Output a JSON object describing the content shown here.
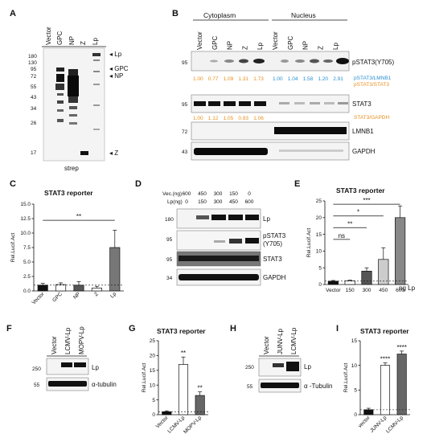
{
  "panels": {
    "A": {
      "letter": "A",
      "lanes": [
        "Vector",
        "GPC",
        "NP",
        "Z",
        "Lp"
      ],
      "markers": [
        "180",
        "130",
        "95",
        "72",
        "55",
        "43",
        "34",
        "26",
        "17"
      ],
      "arrows": [
        "Lp",
        "GPC",
        "NP",
        "Z"
      ],
      "footer": "strep"
    },
    "B": {
      "letter": "B",
      "group_cyto": "Cytoplasm",
      "group_nuc": "Nucleus",
      "lanes": [
        "Vector",
        "GPC",
        "NP",
        "Z",
        "Lp",
        "Vector",
        "GPC",
        "NP",
        "Z",
        "Lp"
      ],
      "blots": [
        {
          "marker": "95",
          "label": "pSTAT3(Y705)"
        },
        {
          "marker": "95",
          "label": "STAT3"
        },
        {
          "marker": "72",
          "label": "LMNB1"
        },
        {
          "marker": "43",
          "label": "GAPDH"
        }
      ],
      "ratios_cyto_top": [
        "1.00",
        "0.77",
        "1.09",
        "1.31",
        "1.73"
      ],
      "ratios_nuc_top": [
        "1.00",
        "1.04",
        "1.58",
        "1.20",
        "2.91"
      ],
      "ratio_label_1": "pSTAT3/LMNB1",
      "ratio_label_2": "pSTAT3/STAT3",
      "ratios_cyto_bottom": [
        "1.00",
        "1.12",
        "1.05",
        "0.93",
        "1.06"
      ],
      "ratio_label_3": "STAT3/GAPDH",
      "color_blue": "#2a8fd0",
      "color_orange": "#e8901e"
    },
    "C": {
      "letter": "C",
      "title": "STAT3 reporter",
      "sig": "**"
    },
    "D": {
      "letter": "D",
      "row_vec_label": "Vec.(ng)",
      "row_vec": [
        "600",
        "450",
        "300",
        "150",
        "0"
      ],
      "row_lp_label": "Lp(ng)",
      "row_lp": [
        "0",
        "150",
        "300",
        "450",
        "600"
      ],
      "blots": [
        {
          "marker": "180",
          "label": "Lp"
        },
        {
          "marker": "95",
          "label": "pSTAT3"
        },
        {
          "marker": "95",
          "label": "STAT3"
        },
        {
          "marker": "34",
          "label": "GAPDH"
        }
      ],
      "pstat_sub": "(Y705)"
    },
    "E": {
      "letter": "E",
      "title": "STAT3 reporter",
      "sigs": [
        "***",
        "*",
        "**",
        "ns"
      ],
      "xunit": "ng Lp"
    },
    "F": {
      "letter": "F",
      "lanes": [
        "Vector",
        "LCMV-Lp",
        "MOPV-Lp"
      ],
      "blots": [
        {
          "marker": "250",
          "label": "Lp"
        },
        {
          "marker": "55",
          "label": "α-tubulin"
        }
      ]
    },
    "G": {
      "letter": "G",
      "title": "STAT3 reporter",
      "sigs": [
        "**",
        "**"
      ]
    },
    "H": {
      "letter": "H",
      "lanes": [
        "Vector",
        "JUNV-Lp",
        "LCMV-Lp"
      ],
      "blots": [
        {
          "marker": "250",
          "label": "Lp"
        },
        {
          "marker": "55",
          "label": "α -Tubulin"
        }
      ]
    },
    "I": {
      "letter": "I",
      "title": "STAT3 reporter",
      "sigs": [
        "****",
        "****"
      ]
    }
  },
  "chart_data": [
    {
      "panel": "C",
      "type": "bar",
      "categories": [
        "Vector",
        "GPC",
        "NP",
        "Z",
        "Lp"
      ],
      "values": [
        1.0,
        1.1,
        1.0,
        0.5,
        7.5
      ],
      "errors": [
        0.3,
        0.3,
        0.6,
        0.3,
        3.0
      ],
      "fills": [
        "#111111",
        "#ffffff",
        "#555555",
        "#ffffff",
        "#777777"
      ],
      "ylabel": "Rel.Lucif.Act",
      "yticks": [
        0,
        2.5,
        5.0,
        7.5,
        10.0,
        12.5,
        15.0
      ],
      "ylim": [
        0,
        15
      ],
      "reference_line": 1
    },
    {
      "panel": "E",
      "type": "bar",
      "categories": [
        "Vector",
        "150",
        "300",
        "450",
        "600"
      ],
      "values": [
        1.0,
        1.1,
        4.0,
        7.5,
        20.0
      ],
      "errors": [
        0.2,
        0.2,
        1.0,
        3.5,
        3.5
      ],
      "fills": [
        "#111111",
        "#ffffff",
        "#555555",
        "#cccccc",
        "#888888"
      ],
      "ylabel": "Rel.Lucif.Act",
      "yticks": [
        0,
        5,
        10,
        15,
        20,
        25
      ],
      "ylim": [
        0,
        25
      ],
      "reference_line": 1
    },
    {
      "panel": "G",
      "type": "bar",
      "categories": [
        "Vector",
        "LCMV-Lp",
        "MOPV-Lp"
      ],
      "values": [
        1.0,
        17.0,
        6.5
      ],
      "errors": [
        0.3,
        2.5,
        1.2
      ],
      "fills": [
        "#111111",
        "#ffffff",
        "#666666"
      ],
      "ylabel": "Rel.Lucif.Act",
      "yticks": [
        0,
        5,
        10,
        15,
        20,
        25
      ],
      "ylim": [
        0,
        25
      ],
      "reference_line": 1
    },
    {
      "panel": "I",
      "type": "bar",
      "categories": [
        "vector",
        "JUNV-Lp",
        "LCMV-Lp"
      ],
      "values": [
        1.0,
        10.0,
        12.3
      ],
      "errors": [
        0.3,
        0.5,
        0.6
      ],
      "fills": [
        "#111111",
        "#ffffff",
        "#666666"
      ],
      "ylabel": "Rel.Lucif.Act",
      "yticks": [
        0,
        5,
        10,
        15
      ],
      "ylim": [
        0,
        15
      ],
      "reference_line": 1
    }
  ]
}
